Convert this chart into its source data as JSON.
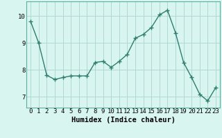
{
  "x": [
    0,
    1,
    2,
    3,
    4,
    5,
    6,
    7,
    8,
    9,
    10,
    11,
    12,
    13,
    14,
    15,
    16,
    17,
    18,
    19,
    20,
    21,
    22,
    23
  ],
  "y": [
    9.8,
    9.0,
    7.8,
    7.65,
    7.72,
    7.78,
    7.78,
    7.78,
    8.28,
    8.32,
    8.1,
    8.32,
    8.58,
    9.18,
    9.32,
    9.58,
    10.05,
    10.22,
    9.38,
    8.28,
    7.72,
    7.1,
    6.85,
    7.35
  ],
  "line_color": "#2e7d6e",
  "marker": "+",
  "marker_size": 4,
  "marker_lw": 1.0,
  "line_width": 1.0,
  "bg_color": "#d8f5f0",
  "grid_color": "#b0d8d2",
  "xlabel": "Humidex (Indice chaleur)",
  "xlabel_fontsize": 7.5,
  "tick_fontsize": 6.5,
  "ylim": [
    6.6,
    10.55
  ],
  "xlim": [
    -0.5,
    23.5
  ],
  "yticks": [
    7,
    8,
    9,
    10
  ],
  "xticks": [
    0,
    1,
    2,
    3,
    4,
    5,
    6,
    7,
    8,
    9,
    10,
    11,
    12,
    13,
    14,
    15,
    16,
    17,
    18,
    19,
    20,
    21,
    22,
    23
  ]
}
